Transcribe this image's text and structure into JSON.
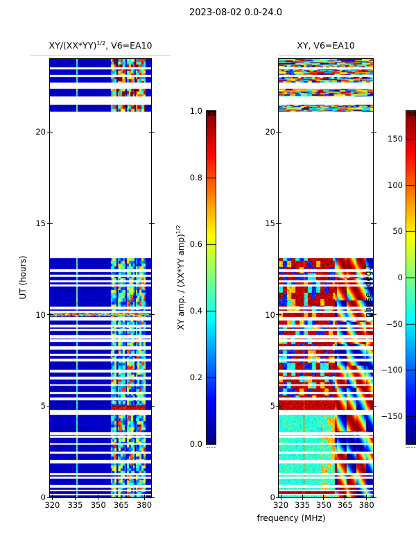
{
  "figure": {
    "title": "2023-08-02 0.0-24.0",
    "background": "#ffffff",
    "text_color": "#000000"
  },
  "time_structure": {
    "hours_range": [
      0,
      24
    ],
    "coverage_hours": [
      [
        0,
        13.1
      ],
      [
        21.1,
        21.5
      ],
      [
        21.95,
        22.38
      ],
      [
        22.72,
        23.02
      ],
      [
        23.12,
        23.44
      ],
      [
        23.56,
        24.0
      ]
    ],
    "gap_hours": [
      [
        12.35,
        12.5
      ],
      [
        12.08,
        12.2
      ],
      [
        11.78,
        11.9
      ],
      [
        11.55,
        11.65
      ],
      [
        10.3,
        10.46
      ],
      [
        10.1,
        10.2
      ],
      [
        9.68,
        9.86
      ],
      [
        9.3,
        9.44
      ],
      [
        9.12,
        9.24
      ],
      [
        8.7,
        8.88
      ],
      [
        8.5,
        8.64
      ],
      [
        8.1,
        8.27
      ],
      [
        7.74,
        7.86
      ],
      [
        7.46,
        7.6
      ],
      [
        6.82,
        6.98
      ],
      [
        6.45,
        6.6
      ],
      [
        6.12,
        6.2
      ],
      [
        5.65,
        5.78
      ],
      [
        5.3,
        5.45
      ],
      [
        4.5,
        4.8
      ],
      [
        3.42,
        3.58
      ],
      [
        3.25,
        3.37
      ],
      [
        2.9,
        2.98
      ],
      [
        2.4,
        2.52
      ],
      [
        1.86,
        2.04
      ],
      [
        1.2,
        1.32
      ],
      [
        1.02,
        1.14
      ],
      [
        0.54,
        0.7
      ],
      [
        0.35,
        0.42
      ],
      [
        0.1,
        0.2
      ]
    ]
  },
  "colormap": {
    "name": "jet",
    "stops": [
      "#00007f",
      "#0000ff",
      "#00ffff",
      "#80ff80",
      "#ffff00",
      "#ff0000",
      "#7f0000"
    ]
  },
  "chart_data": [
    {
      "type": "heatmap",
      "panel": "left",
      "title_parts": {
        "pre": "XY/(XX*YY)",
        "sup": "1/2",
        "post": ", V6=EA10"
      },
      "xlabel": "frequency (MHz)",
      "ylabel": "UT (hours)",
      "xlim": [
        318.5,
        384.5
      ],
      "ylim": [
        0,
        24
      ],
      "x_ticks": {
        "values": [
          320,
          335,
          350,
          365,
          380
        ],
        "labels": [
          "320",
          "335",
          "350",
          "365",
          "380"
        ]
      },
      "y_ticks": {
        "values": [
          0,
          5,
          10,
          15,
          20
        ],
        "labels": [
          "0",
          "5",
          "10",
          "15",
          "20"
        ]
      },
      "value_range": [
        0,
        1
      ],
      "colorbar": {
        "label_parts": {
          "pre": "XY amp. / (XX*YY amp)",
          "sup": "1/2"
        },
        "ticks": {
          "values": [
            0,
            0.2,
            0.4,
            0.6,
            0.8,
            1
          ],
          "labels": [
            "0.0",
            "0.2",
            "0.4",
            "0.6",
            "0.8",
            "1.0"
          ]
        }
      },
      "content": {
        "description": "XY cross-amplitude ratio: near 0 (dark navy) from 318-358 MHz; noisy 0.13-0.95 activity band 358-381 MHz split by quiet channels; enhanced narrow channel near 336 MHz (~0.3-0.6, cyan); data 0-13.1h and 21.1-24h, white gaps elsewhere",
        "background_value": 0.05,
        "vertical_line": {
          "freq_mhz": 336.2,
          "value": 0.45
        },
        "active_band": {
          "freq_range_mhz": [
            358.2,
            381
          ],
          "value_range": [
            0.13,
            0.95
          ],
          "separator_freqs_mhz": [
            362.3,
            368.2,
            374.1
          ]
        },
        "hot_rows": [
          {
            "hours": [
              4.62,
              5.04
            ],
            "freq_range_mhz": [
              358.2,
              381
            ],
            "value_range": [
              0.8,
              1.0
            ]
          },
          {
            "hours": [
              9.93,
              10.09
            ],
            "freq_range_mhz": [
              318.5,
              384.5
            ],
            "value_range": [
              0.15,
              1.0
            ]
          }
        ]
      }
    },
    {
      "type": "heatmap",
      "panel": "right",
      "title_parts": {
        "pre": "XY, V6=EA10",
        "sup": "",
        "post": ""
      },
      "xlabel": "frequency (MHz)",
      "ylabel": "",
      "xlim": [
        318.5,
        384.5
      ],
      "ylim": [
        0,
        24
      ],
      "x_ticks": {
        "values": [
          320,
          335,
          350,
          365,
          380
        ],
        "labels": [
          "320",
          "335",
          "350",
          "365",
          "380"
        ]
      },
      "y_ticks": {
        "values": [
          0,
          5,
          10,
          15,
          20
        ],
        "labels": [
          "0",
          "5",
          "10",
          "15",
          "20"
        ]
      },
      "value_range": [
        -180,
        180
      ],
      "colorbar": {
        "label": "phase (deg.)",
        "ticks": {
          "values": [
            150,
            100,
            50,
            0,
            -50,
            -100,
            -150
          ],
          "labels": [
            "150",
            "100",
            "50",
            "0",
            "−50",
            "−100",
            "−150"
          ]
        }
      },
      "content": {
        "description": "XY phase (deg): 5.5-13.1h red-dominant (+140..180) with blue/cyan patches; 4.55-5.45h saturated red; 0-4.55h cyan-green (-60..0) with yellow patches above 348 MHz and sporadic red streaks; smooth swirling phase 358-384 MHz; 21-24h horizontal multicolor streaks; enhanced channel near 336 MHz (~+110, orange)",
        "vertical_line": {
          "freq_mhz": 336.2,
          "phase_deg": 110
        },
        "smooth_band_freq_mhz": [
          358,
          384.5
        ],
        "regions": [
          {
            "hours": [
              5.45,
              13.1
            ],
            "mode": "patchy-red"
          },
          {
            "hours": [
              4.55,
              5.45
            ],
            "mode": "red"
          },
          {
            "hours": [
              0,
              4.55
            ],
            "mode": "cyan-yellow"
          },
          {
            "hours": [
              21,
              24
            ],
            "mode": "streaks"
          }
        ]
      }
    }
  ]
}
